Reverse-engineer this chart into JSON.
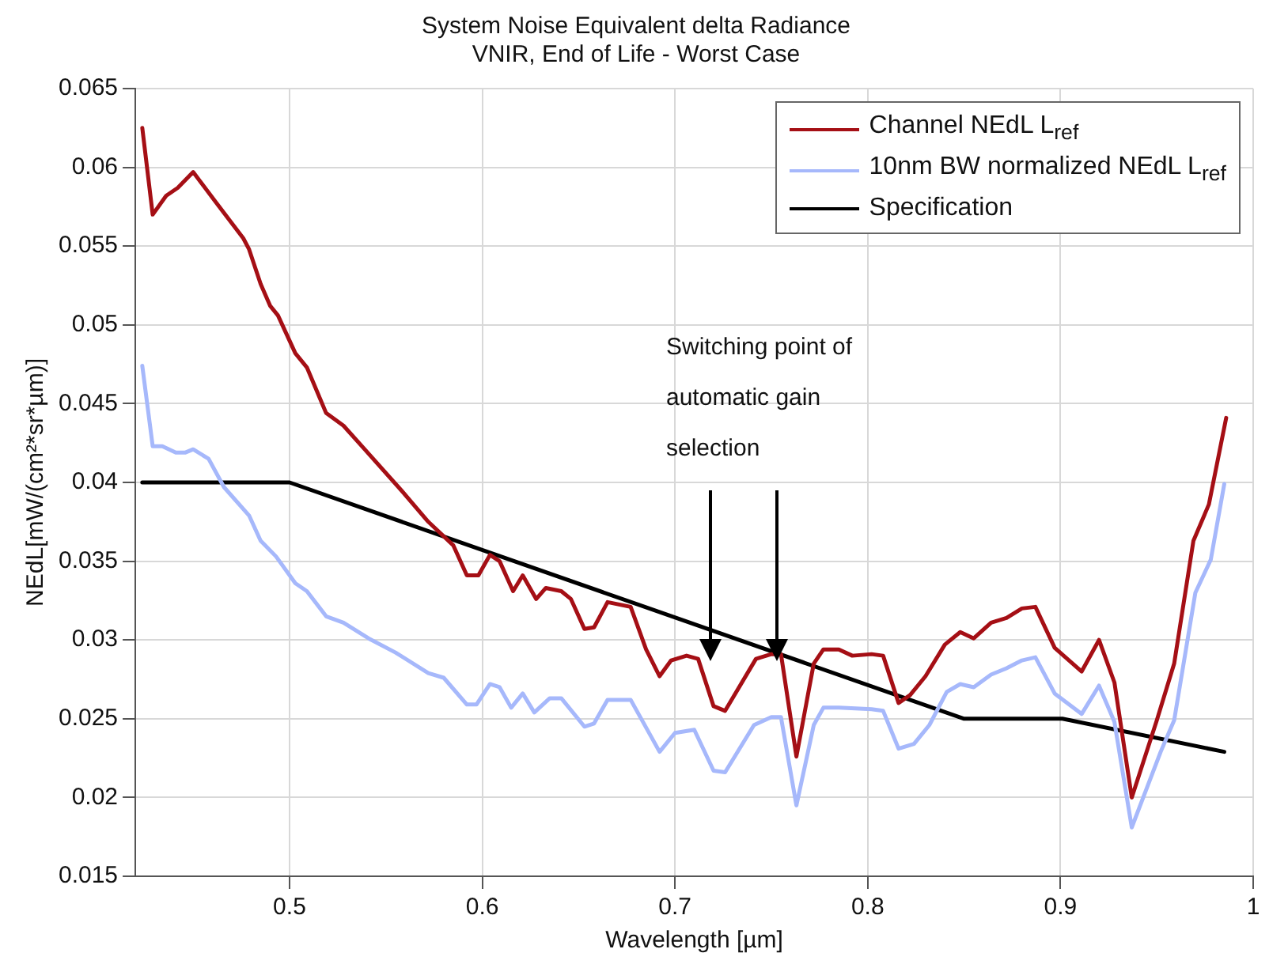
{
  "chart_data": {
    "type": "line",
    "title": "System Noise Equivalent delta Radiance",
    "subtitle": "VNIR, End of Life - Worst Case",
    "xlabel": "Wavelength [µm]",
    "ylabel": "NEdL[mW/(cm²*sr*µm)]",
    "xlim": [
      0.42,
      1
    ],
    "xticks": [
      0.5,
      0.6,
      0.7,
      0.8,
      0.9,
      1
    ],
    "ylim": [
      0.015,
      0.065
    ],
    "yticks": [
      0.015,
      0.02,
      0.025,
      0.03,
      0.035,
      0.04,
      0.045,
      0.05,
      0.055,
      0.06,
      0.065
    ],
    "grid": true,
    "legend": "top right",
    "marker": "none",
    "line_style": "solid",
    "annotations": [
      "Switching point of automatic gain selection"
    ],
    "series": [
      {
        "name": "Channel NEdL  L$_{ref}$",
        "color": "#a50f15",
        "x": [
          0.4236,
          0.429,
          0.436,
          0.442,
          0.45,
          0.466,
          0.476,
          0.479,
          0.485,
          0.49,
          0.494,
          0.503,
          0.509,
          0.519,
          0.528,
          0.539,
          0.558,
          0.572,
          0.585,
          0.592,
          0.598,
          0.604,
          0.609,
          0.616,
          0.621,
          0.628,
          0.633,
          0.641,
          0.646,
          0.653,
          0.658,
          0.665,
          0.677,
          0.685,
          0.692,
          0.698,
          0.706,
          0.712,
          0.72,
          0.726,
          0.742,
          0.75,
          0.755,
          0.763,
          0.772,
          0.777,
          0.785,
          0.792,
          0.802,
          0.808,
          0.816,
          0.822,
          0.83,
          0.84,
          0.848,
          0.855,
          0.864,
          0.872,
          0.88,
          0.887,
          0.897,
          0.911,
          0.92,
          0.928,
          0.937,
          0.95,
          0.959,
          0.969,
          0.977,
          0.986
        ],
        "values": [
          0.0625,
          0.057,
          0.0582,
          0.0587,
          0.0597,
          0.0571,
          0.0555,
          0.0548,
          0.0526,
          0.0512,
          0.0506,
          0.0482,
          0.0473,
          0.0444,
          0.0436,
          0.0421,
          0.0395,
          0.0375,
          0.036,
          0.0341,
          0.0341,
          0.0354,
          0.035,
          0.0331,
          0.0341,
          0.0326,
          0.0333,
          0.0331,
          0.0326,
          0.0307,
          0.0308,
          0.0324,
          0.0321,
          0.0294,
          0.0277,
          0.0287,
          0.029,
          0.0288,
          0.0258,
          0.0255,
          0.0288,
          0.0291,
          0.0291,
          0.0226,
          0.0285,
          0.0294,
          0.0294,
          0.029,
          0.0291,
          0.029,
          0.026,
          0.0265,
          0.0277,
          0.0297,
          0.0305,
          0.0301,
          0.0311,
          0.0314,
          0.032,
          0.0321,
          0.0295,
          0.028,
          0.03,
          0.0273,
          0.02,
          0.0249,
          0.0285,
          0.0363,
          0.0386,
          0.0441
        ]
      },
      {
        "name": "10nm BW normalized NEdL L$_{ref}$",
        "color": "#a6b8fb",
        "x": [
          0.4236,
          0.429,
          0.434,
          0.441,
          0.446,
          0.45,
          0.458,
          0.466,
          0.479,
          0.485,
          0.493,
          0.503,
          0.509,
          0.519,
          0.528,
          0.541,
          0.555,
          0.572,
          0.58,
          0.592,
          0.597,
          0.604,
          0.609,
          0.615,
          0.621,
          0.627,
          0.635,
          0.641,
          0.653,
          0.658,
          0.665,
          0.677,
          0.692,
          0.7,
          0.71,
          0.72,
          0.726,
          0.741,
          0.75,
          0.755,
          0.763,
          0.772,
          0.777,
          0.785,
          0.802,
          0.808,
          0.816,
          0.824,
          0.832,
          0.841,
          0.848,
          0.855,
          0.864,
          0.872,
          0.88,
          0.887,
          0.897,
          0.911,
          0.92,
          0.928,
          0.937,
          0.952,
          0.959,
          0.97,
          0.978,
          0.985
        ],
        "values": [
          0.0474,
          0.0423,
          0.0423,
          0.0419,
          0.0419,
          0.0421,
          0.0415,
          0.0397,
          0.0379,
          0.0363,
          0.0353,
          0.0336,
          0.0331,
          0.0315,
          0.0311,
          0.0301,
          0.0292,
          0.0279,
          0.0276,
          0.0259,
          0.0259,
          0.0272,
          0.027,
          0.0257,
          0.0266,
          0.0254,
          0.0263,
          0.0263,
          0.0245,
          0.0247,
          0.0262,
          0.0262,
          0.0229,
          0.0241,
          0.0243,
          0.0217,
          0.0216,
          0.0246,
          0.0251,
          0.0251,
          0.0195,
          0.0246,
          0.0257,
          0.0257,
          0.0256,
          0.0255,
          0.0231,
          0.0234,
          0.0246,
          0.0267,
          0.0272,
          0.027,
          0.0278,
          0.0282,
          0.0287,
          0.0289,
          0.0266,
          0.0253,
          0.0271,
          0.0248,
          0.0181,
          0.0229,
          0.0249,
          0.033,
          0.0351,
          0.0399
        ]
      },
      {
        "name": "Specification",
        "color": "#000000",
        "x": [
          0.4236,
          0.5,
          0.85,
          0.901,
          0.985
        ],
        "values": [
          0.04,
          0.04,
          0.025,
          0.025,
          0.0229
        ]
      }
    ]
  }
}
